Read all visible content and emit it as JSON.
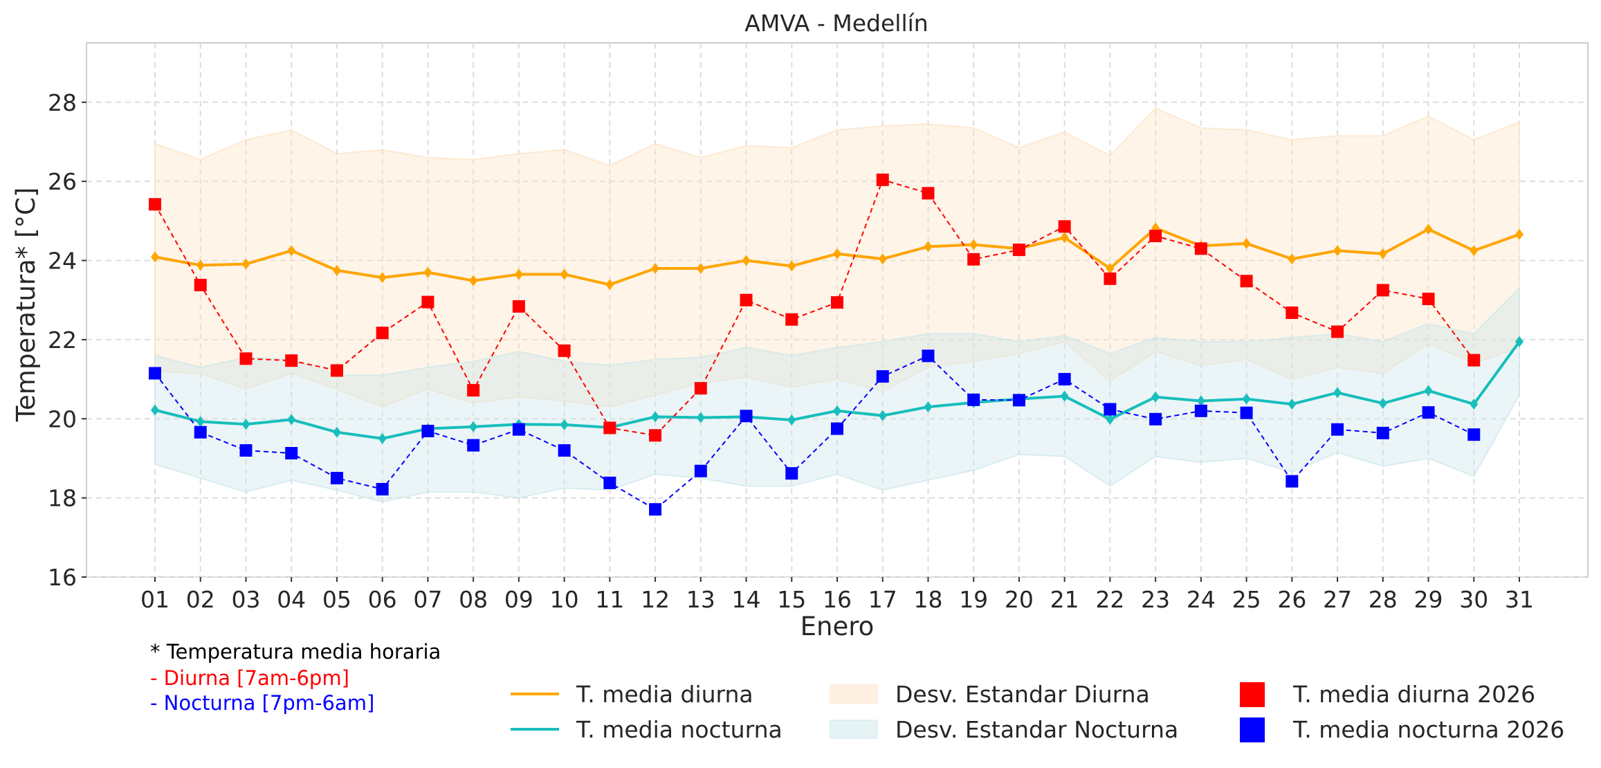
{
  "chart_data": {
    "type": "line",
    "title": "AMVA - Medellín",
    "xlabel": "Enero",
    "ylabel": "Temperatura* [°C]",
    "ylim": [
      16,
      29.5
    ],
    "yticks": [
      16,
      18,
      20,
      22,
      24,
      26,
      28
    ],
    "grid": true,
    "categories": [
      "01",
      "02",
      "03",
      "04",
      "05",
      "06",
      "07",
      "08",
      "09",
      "10",
      "11",
      "12",
      "13",
      "14",
      "15",
      "16",
      "17",
      "18",
      "19",
      "20",
      "21",
      "22",
      "23",
      "24",
      "25",
      "26",
      "27",
      "28",
      "29",
      "30",
      "31"
    ],
    "series": [
      {
        "name": "T. media diurna",
        "kind": "line",
        "color": "#FFA500",
        "marker": "diamond",
        "values": [
          24.09,
          23.88,
          23.91,
          24.25,
          23.75,
          23.57,
          23.7,
          23.49,
          23.65,
          23.65,
          23.39,
          23.8,
          23.8,
          24.0,
          23.86,
          24.17,
          24.04,
          24.35,
          24.4,
          24.3,
          24.58,
          23.8,
          24.82,
          24.37,
          24.43,
          24.04,
          24.25,
          24.17,
          24.79,
          24.25,
          24.66
        ]
      },
      {
        "name": "T. media nocturna",
        "kind": "line",
        "color": "#17BEBB",
        "marker": "diamond",
        "values": [
          20.22,
          19.93,
          19.86,
          19.98,
          19.66,
          19.5,
          19.75,
          19.8,
          19.86,
          19.85,
          19.78,
          20.05,
          20.03,
          20.05,
          19.97,
          20.2,
          20.08,
          20.3,
          20.41,
          20.5,
          20.57,
          19.99,
          20.55,
          20.45,
          20.5,
          20.37,
          20.66,
          20.39,
          20.71,
          20.37,
          21.95
        ]
      },
      {
        "name": "Desv. Estandar Diurna",
        "kind": "band",
        "color": "#FDE3C5",
        "upper": [
          26.95,
          26.55,
          27.05,
          27.3,
          26.7,
          26.8,
          26.6,
          26.55,
          26.7,
          26.8,
          26.4,
          26.95,
          26.6,
          26.9,
          26.85,
          27.3,
          27.4,
          27.45,
          27.35,
          26.85,
          27.25,
          26.65,
          27.85,
          27.35,
          27.3,
          27.05,
          27.15,
          27.15,
          27.65,
          27.05,
          27.5
        ],
        "lower": [
          21.2,
          21.15,
          20.75,
          21.15,
          20.75,
          20.3,
          20.75,
          20.4,
          20.55,
          20.45,
          20.3,
          20.6,
          20.9,
          21.05,
          20.8,
          21.0,
          20.7,
          21.3,
          21.45,
          21.65,
          21.95,
          20.95,
          21.7,
          21.35,
          21.5,
          21.0,
          21.3,
          21.15,
          21.9,
          21.4,
          21.8
        ]
      },
      {
        "name": "Desv. Estandar Nocturna",
        "kind": "band",
        "color": "#CCE7EA",
        "upper": [
          21.6,
          21.3,
          21.55,
          21.5,
          21.1,
          21.1,
          21.3,
          21.45,
          21.7,
          21.45,
          21.35,
          21.5,
          21.55,
          21.8,
          21.6,
          21.8,
          21.95,
          22.15,
          22.15,
          21.95,
          22.1,
          21.65,
          22.05,
          21.95,
          21.95,
          22.05,
          22.15,
          21.95,
          22.4,
          22.15,
          23.3
        ],
        "lower": [
          18.85,
          18.5,
          18.15,
          18.45,
          18.2,
          17.9,
          18.15,
          18.15,
          18.0,
          18.25,
          18.2,
          18.6,
          18.5,
          18.3,
          18.3,
          18.6,
          18.2,
          18.45,
          18.7,
          19.1,
          19.05,
          18.3,
          19.05,
          18.9,
          19.0,
          18.65,
          19.15,
          18.8,
          19.0,
          18.55,
          20.6
        ]
      },
      {
        "name": "T. media diurna 2026",
        "kind": "scatter-dashed",
        "color": "#FF0000",
        "marker": "square",
        "values": [
          25.42,
          23.38,
          21.52,
          21.47,
          21.22,
          22.17,
          22.95,
          20.72,
          22.84,
          21.72,
          19.77,
          19.58,
          20.77,
          23.0,
          22.51,
          22.94,
          26.04,
          25.7,
          24.03,
          24.27,
          24.86,
          23.54,
          24.62,
          24.3,
          23.48,
          22.68,
          22.2,
          23.25,
          23.03,
          21.48,
          null
        ]
      },
      {
        "name": "T. media nocturna 2026",
        "kind": "scatter-dashed",
        "color": "#0000FF",
        "marker": "square",
        "values": [
          21.15,
          19.66,
          19.2,
          19.13,
          18.5,
          18.22,
          19.69,
          19.33,
          19.73,
          19.2,
          18.38,
          17.71,
          18.68,
          20.07,
          18.62,
          19.75,
          21.07,
          21.59,
          20.48,
          20.47,
          21.0,
          20.24,
          19.99,
          20.2,
          20.15,
          18.42,
          19.73,
          19.64,
          20.16,
          19.6,
          null
        ]
      }
    ],
    "legend": {
      "placement": "bottom",
      "entries": [
        {
          "label": "T. media diurna",
          "type": "line",
          "color": "#FFA500"
        },
        {
          "label": "T. media nocturna",
          "type": "line",
          "color": "#17BEBB"
        },
        {
          "label": "Desv. Estandar Diurna",
          "type": "patch",
          "color": "#FDE3C5"
        },
        {
          "label": "Desv. Estandar Nocturna",
          "type": "patch",
          "color": "#CCE7EA"
        },
        {
          "label": "T. media diurna 2026",
          "type": "marker",
          "color": "#FF0000"
        },
        {
          "label": "T. media nocturna 2026",
          "type": "marker",
          "color": "#0000FF"
        }
      ]
    },
    "annotations": [
      {
        "text": "* Temperatura media horaria",
        "color": "#000000"
      },
      {
        "text": "- Diurna [7am-6pm]",
        "color": "#FF0000"
      },
      {
        "text": "- Nocturna [7pm-6am]",
        "color": "#0000FF"
      }
    ]
  }
}
